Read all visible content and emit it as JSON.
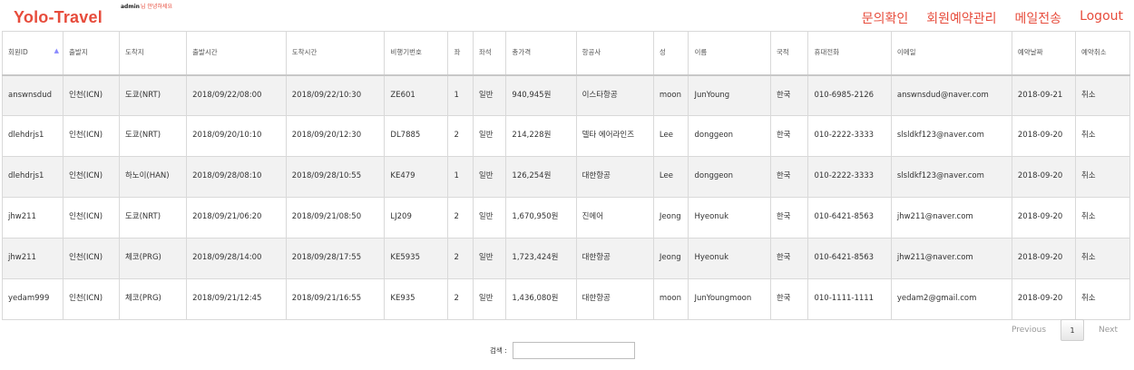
{
  "header": {
    "brand": "Yolo-Travel",
    "greeting_user": "admin",
    "greeting_text": "님 안녕하세요",
    "nav": [
      "문의확인",
      "회원예약관리",
      "메일전송",
      "Logout"
    ]
  },
  "table": {
    "columns": [
      "회원ID",
      "출발지",
      "도착지",
      "출발시간",
      "도착시간",
      "비행기번호",
      "좌",
      "좌석",
      "총가격",
      "항공사",
      "성",
      "이름",
      "국적",
      "휴대전화",
      "이메일",
      "예약날짜",
      "예약취소"
    ],
    "sort_indicator": "▲",
    "rows": [
      [
        "answnsdud",
        "인천(ICN)",
        "도쿄(NRT)",
        "2018/09/22/08:00",
        "2018/09/22/10:30",
        "ZE601",
        "1",
        "일반",
        "940,945원",
        "이스타항공",
        "moon",
        "JunYoung",
        "한국",
        "010-6985-2126",
        "answnsdud@naver.com",
        "2018-09-21",
        "취소"
      ],
      [
        "dlehdrjs1",
        "인천(ICN)",
        "도쿄(NRT)",
        "2018/09/20/10:10",
        "2018/09/20/12:30",
        "DL7885",
        "2",
        "일반",
        "214,228원",
        "델타 에어라인즈",
        "Lee",
        "donggeon",
        "한국",
        "010-2222-3333",
        "slsldkf123@naver.com",
        "2018-09-20",
        "취소"
      ],
      [
        "dlehdrjs1",
        "인천(ICN)",
        "하노이(HAN)",
        "2018/09/28/08:10",
        "2018/09/28/10:55",
        "KE479",
        "1",
        "일반",
        "126,254원",
        "대한항공",
        "Lee",
        "donggeon",
        "한국",
        "010-2222-3333",
        "slsldkf123@naver.com",
        "2018-09-20",
        "취소"
      ],
      [
        "jhw211",
        "인천(ICN)",
        "도쿄(NRT)",
        "2018/09/21/06:20",
        "2018/09/21/08:50",
        "LJ209",
        "2",
        "일반",
        "1,670,950원",
        "진에어",
        "Jeong",
        "Hyeonuk",
        "한국",
        "010-6421-8563",
        "jhw211@naver.com",
        "2018-09-20",
        "취소"
      ],
      [
        "jhw211",
        "인천(ICN)",
        "체코(PRG)",
        "2018/09/28/14:00",
        "2018/09/28/17:55",
        "KE5935",
        "2",
        "일반",
        "1,723,424원",
        "대한항공",
        "Jeong",
        "Hyeonuk",
        "한국",
        "010-6421-8563",
        "jhw211@naver.com",
        "2018-09-20",
        "취소"
      ],
      [
        "yedam999",
        "인천(ICN)",
        "체코(PRG)",
        "2018/09/21/12:45",
        "2018/09/21/16:55",
        "KE935",
        "2",
        "일반",
        "1,436,080원",
        "대한항공",
        "moon",
        "JunYoungmoon",
        "한국",
        "010-1111-1111",
        "yedam2@gmail.com",
        "2018-09-20",
        "취소"
      ]
    ]
  },
  "pagination": {
    "previous": "Previous",
    "current": "1",
    "next": "Next"
  },
  "search": {
    "label": "검색 :",
    "value": ""
  },
  "colors": {
    "accent": "#e74c3c",
    "stripe": "#f2f2f2",
    "border": "#d9d9d9"
  }
}
